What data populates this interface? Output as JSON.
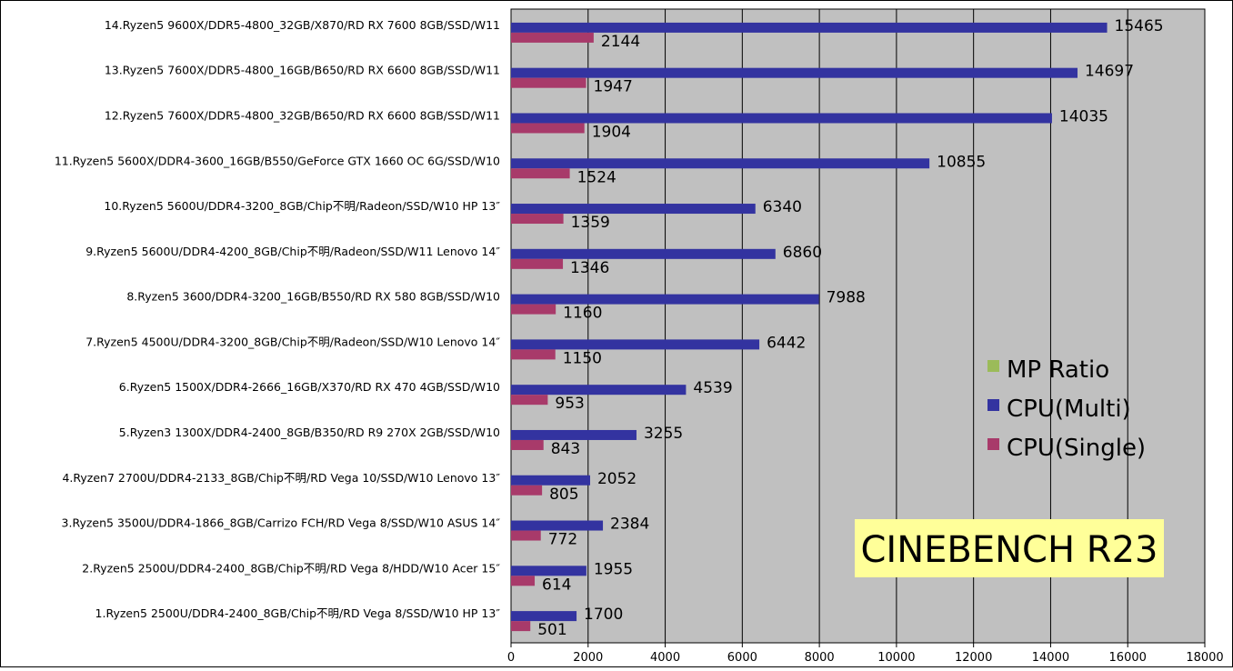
{
  "chart_data": {
    "type": "bar",
    "orientation": "horizontal",
    "title": "CINEBENCH R23",
    "xlim": [
      0,
      18000
    ],
    "x_ticks": [
      0,
      2000,
      4000,
      6000,
      8000,
      10000,
      12000,
      14000,
      16000,
      18000
    ],
    "grid": true,
    "legend_position": "right",
    "categories": [
      "14.Ryzen5 9600X/DDR5-4800_32GB/X870/RD RX 7600 8GB/SSD/W11",
      "13.Ryzen5 7600X/DDR5-4800_16GB/B650/RD RX 6600 8GB/SSD/W11",
      "12.Ryzen5 7600X/DDR5-4800_32GB/B650/RD RX 6600 8GB/SSD/W11",
      "11.Ryzen5 5600X/DDR4-3600_16GB/B550/GeForce GTX 1660 OC 6G/SSD/W10",
      "10.Ryzen5 5600U/DDR4-3200_8GB/Chip不明/Radeon/SSD/W10 HP 13″",
      "9.Ryzen5 5600U/DDR4-4200_8GB/Chip不明/Radeon/SSD/W11 Lenovo 14″",
      "8.Ryzen5 3600/DDR4-3200_16GB/B550/RD RX 580 8GB/SSD/W10",
      "7.Ryzen5 4500U/DDR4-3200_8GB/Chip不明/Radeon/SSD/W10 Lenovo 14″",
      "6.Ryzen5 1500X/DDR4-2666_16GB/X370/RD RX 470 4GB/SSD/W10",
      "5.Ryzen3 1300X/DDR4-2400_8GB/B350/RD R9 270X 2GB/SSD/W10",
      "4.Ryzen7 2700U/DDR4-2133_8GB/Chip不明/RD Vega 10/SSD/W10 Lenovo 13″",
      "3.Ryzen5 3500U/DDR4-1866_8GB/Carrizo FCH/RD Vega 8/SSD/W10 ASUS 14″",
      "2.Ryzen5 2500U/DDR4-2400_8GB/Chip不明/RD Vega  8/HDD/W10 Acer 15″",
      "1.Ryzen5 2500U/DDR4-2400_8GB/Chip不明/RD Vega  8/SSD/W10 HP 13″"
    ],
    "series": [
      {
        "name": "MP Ratio",
        "color": "#9bbb59",
        "values": [
          null,
          null,
          null,
          null,
          null,
          null,
          null,
          null,
          null,
          null,
          null,
          null,
          null,
          null
        ]
      },
      {
        "name": "CPU(Multi)",
        "color": "#3333a0",
        "values": [
          15465,
          14697,
          14035,
          10855,
          6340,
          6860,
          7988,
          6442,
          4539,
          3255,
          2052,
          2384,
          1955,
          1700
        ]
      },
      {
        "name": "CPU(Single)",
        "color": "#a83a6a",
        "values": [
          2144,
          1947,
          1904,
          1524,
          1359,
          1346,
          1160,
          1150,
          953,
          843,
          805,
          772,
          614,
          501
        ]
      }
    ],
    "colors": {
      "plot_background": "#c0c0c0",
      "title_box": "#ffff99",
      "gridline": "#000000"
    }
  }
}
